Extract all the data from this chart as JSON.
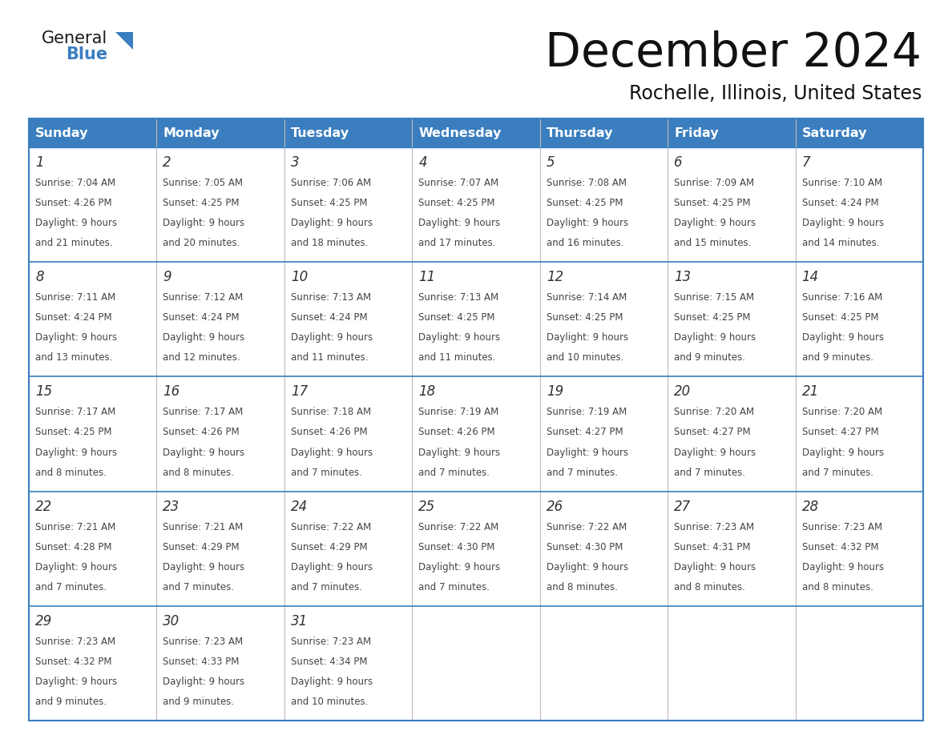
{
  "title": "December 2024",
  "subtitle": "Rochelle, Illinois, United States",
  "header_color": "#3a7ebf",
  "header_text_color": "#ffffff",
  "cell_bg_color": "#ffffff",
  "border_color": "#3a7ebf",
  "row_line_color": "#3a7ebf",
  "text_color": "#444444",
  "title_color": "#111111",
  "days_of_week": [
    "Sunday",
    "Monday",
    "Tuesday",
    "Wednesday",
    "Thursday",
    "Friday",
    "Saturday"
  ],
  "weeks": [
    [
      {
        "day": 1,
        "sunrise": "7:04 AM",
        "sunset": "4:26 PM",
        "daylight_hours": 9,
        "daylight_minutes": 21
      },
      {
        "day": 2,
        "sunrise": "7:05 AM",
        "sunset": "4:25 PM",
        "daylight_hours": 9,
        "daylight_minutes": 20
      },
      {
        "day": 3,
        "sunrise": "7:06 AM",
        "sunset": "4:25 PM",
        "daylight_hours": 9,
        "daylight_minutes": 18
      },
      {
        "day": 4,
        "sunrise": "7:07 AM",
        "sunset": "4:25 PM",
        "daylight_hours": 9,
        "daylight_minutes": 17
      },
      {
        "day": 5,
        "sunrise": "7:08 AM",
        "sunset": "4:25 PM",
        "daylight_hours": 9,
        "daylight_minutes": 16
      },
      {
        "day": 6,
        "sunrise": "7:09 AM",
        "sunset": "4:25 PM",
        "daylight_hours": 9,
        "daylight_minutes": 15
      },
      {
        "day": 7,
        "sunrise": "7:10 AM",
        "sunset": "4:24 PM",
        "daylight_hours": 9,
        "daylight_minutes": 14
      }
    ],
    [
      {
        "day": 8,
        "sunrise": "7:11 AM",
        "sunset": "4:24 PM",
        "daylight_hours": 9,
        "daylight_minutes": 13
      },
      {
        "day": 9,
        "sunrise": "7:12 AM",
        "sunset": "4:24 PM",
        "daylight_hours": 9,
        "daylight_minutes": 12
      },
      {
        "day": 10,
        "sunrise": "7:13 AM",
        "sunset": "4:24 PM",
        "daylight_hours": 9,
        "daylight_minutes": 11
      },
      {
        "day": 11,
        "sunrise": "7:13 AM",
        "sunset": "4:25 PM",
        "daylight_hours": 9,
        "daylight_minutes": 11
      },
      {
        "day": 12,
        "sunrise": "7:14 AM",
        "sunset": "4:25 PM",
        "daylight_hours": 9,
        "daylight_minutes": 10
      },
      {
        "day": 13,
        "sunrise": "7:15 AM",
        "sunset": "4:25 PM",
        "daylight_hours": 9,
        "daylight_minutes": 9
      },
      {
        "day": 14,
        "sunrise": "7:16 AM",
        "sunset": "4:25 PM",
        "daylight_hours": 9,
        "daylight_minutes": 9
      }
    ],
    [
      {
        "day": 15,
        "sunrise": "7:17 AM",
        "sunset": "4:25 PM",
        "daylight_hours": 9,
        "daylight_minutes": 8
      },
      {
        "day": 16,
        "sunrise": "7:17 AM",
        "sunset": "4:26 PM",
        "daylight_hours": 9,
        "daylight_minutes": 8
      },
      {
        "day": 17,
        "sunrise": "7:18 AM",
        "sunset": "4:26 PM",
        "daylight_hours": 9,
        "daylight_minutes": 7
      },
      {
        "day": 18,
        "sunrise": "7:19 AM",
        "sunset": "4:26 PM",
        "daylight_hours": 9,
        "daylight_minutes": 7
      },
      {
        "day": 19,
        "sunrise": "7:19 AM",
        "sunset": "4:27 PM",
        "daylight_hours": 9,
        "daylight_minutes": 7
      },
      {
        "day": 20,
        "sunrise": "7:20 AM",
        "sunset": "4:27 PM",
        "daylight_hours": 9,
        "daylight_minutes": 7
      },
      {
        "day": 21,
        "sunrise": "7:20 AM",
        "sunset": "4:27 PM",
        "daylight_hours": 9,
        "daylight_minutes": 7
      }
    ],
    [
      {
        "day": 22,
        "sunrise": "7:21 AM",
        "sunset": "4:28 PM",
        "daylight_hours": 9,
        "daylight_minutes": 7
      },
      {
        "day": 23,
        "sunrise": "7:21 AM",
        "sunset": "4:29 PM",
        "daylight_hours": 9,
        "daylight_minutes": 7
      },
      {
        "day": 24,
        "sunrise": "7:22 AM",
        "sunset": "4:29 PM",
        "daylight_hours": 9,
        "daylight_minutes": 7
      },
      {
        "day": 25,
        "sunrise": "7:22 AM",
        "sunset": "4:30 PM",
        "daylight_hours": 9,
        "daylight_minutes": 7
      },
      {
        "day": 26,
        "sunrise": "7:22 AM",
        "sunset": "4:30 PM",
        "daylight_hours": 9,
        "daylight_minutes": 8
      },
      {
        "day": 27,
        "sunrise": "7:23 AM",
        "sunset": "4:31 PM",
        "daylight_hours": 9,
        "daylight_minutes": 8
      },
      {
        "day": 28,
        "sunrise": "7:23 AM",
        "sunset": "4:32 PM",
        "daylight_hours": 9,
        "daylight_minutes": 8
      }
    ],
    [
      {
        "day": 29,
        "sunrise": "7:23 AM",
        "sunset": "4:32 PM",
        "daylight_hours": 9,
        "daylight_minutes": 9
      },
      {
        "day": 30,
        "sunrise": "7:23 AM",
        "sunset": "4:33 PM",
        "daylight_hours": 9,
        "daylight_minutes": 9
      },
      {
        "day": 31,
        "sunrise": "7:23 AM",
        "sunset": "4:34 PM",
        "daylight_hours": 9,
        "daylight_minutes": 10
      },
      null,
      null,
      null,
      null
    ]
  ],
  "logo_general_color": "#1a1a1a",
  "logo_blue_color": "#3a7ebf",
  "logo_triangle_color": "#3a7ebf"
}
